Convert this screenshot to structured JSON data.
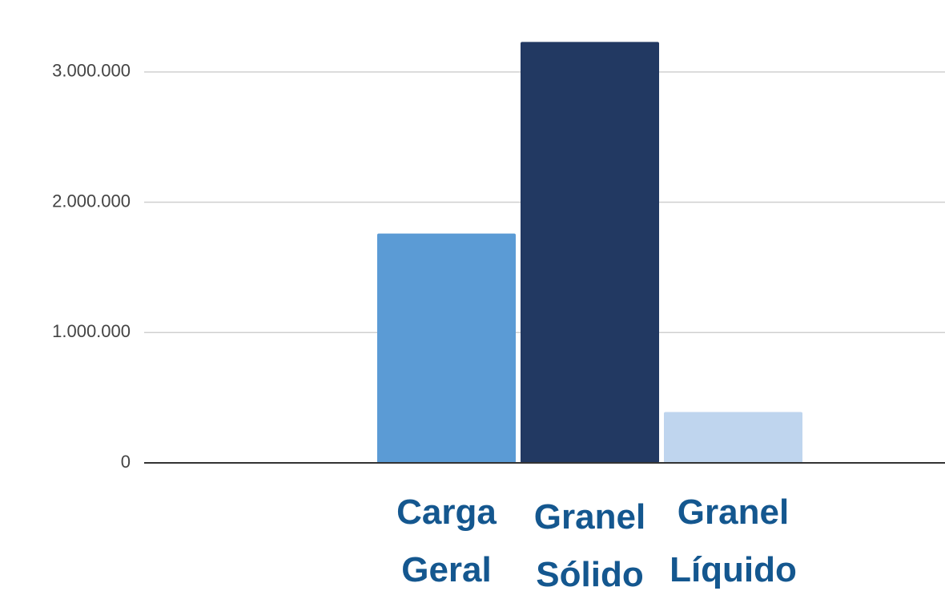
{
  "chart_data": {
    "type": "bar",
    "categories": [
      "Carga Geral",
      "Granel Sólido",
      "Granel Líquido"
    ],
    "values": [
      1760000,
      3230000,
      390000
    ],
    "colors": [
      "#5b9bd5",
      "#223962",
      "#bfd5ee"
    ],
    "ylim": [
      0,
      3300000
    ],
    "yticks": [
      0,
      {
        "value": 1000000,
        "label": "1.000.000"
      },
      {
        "value": 2000000,
        "label": "2.000.000"
      },
      {
        "value": 3000000,
        "label": "3.000.000"
      }
    ],
    "grid": true
  }
}
